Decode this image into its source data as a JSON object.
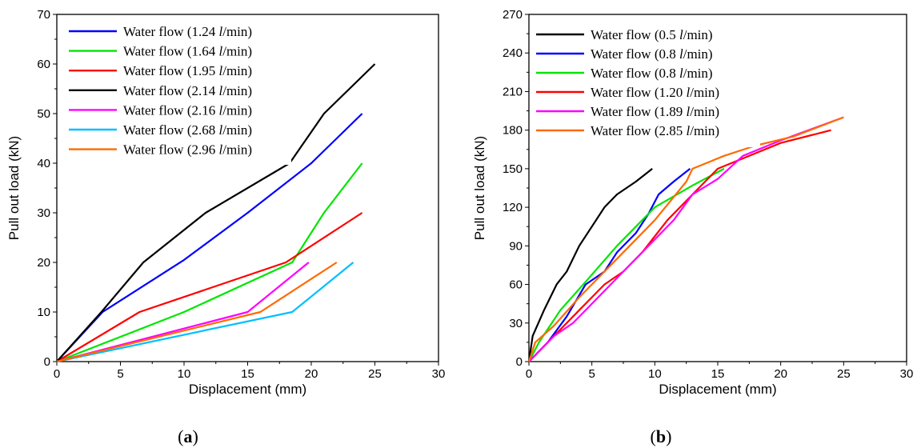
{
  "figure": {
    "captions": [
      {
        "open": "(",
        "letter": "a",
        "close": ")"
      },
      {
        "open": "(",
        "letter": "b",
        "close": ")"
      }
    ]
  },
  "chart_data": [
    {
      "type": "line",
      "xlabel": "Displacement (mm)",
      "ylabel": "Pull out load (kN)",
      "xlim": [
        0,
        30
      ],
      "ylim": [
        0,
        70
      ],
      "xticks": [
        0,
        5,
        10,
        15,
        20,
        25,
        30
      ],
      "yticks": [
        0,
        10,
        20,
        30,
        40,
        50,
        60,
        70
      ],
      "legend_position": "top-left",
      "grid": false,
      "series": [
        {
          "name": "Water flow (1.24 l/min)",
          "legend_prefix": "Water flow (1.24 ",
          "legend_unit": "l",
          "legend_suffix": "/min)",
          "color": "#0000ff",
          "x": [
            0,
            3.6,
            10,
            15,
            20,
            24
          ],
          "y": [
            0,
            10,
            20.5,
            30,
            40,
            50
          ]
        },
        {
          "name": "Water flow (1.64 l/min)",
          "legend_prefix": "Water flow (1.64 ",
          "legend_unit": "l",
          "legend_suffix": "/min)",
          "color": "#00e600",
          "x": [
            0,
            10,
            18.5,
            21,
            24
          ],
          "y": [
            0,
            10,
            20,
            30,
            40
          ]
        },
        {
          "name": "Water flow (1.95 l/min)",
          "legend_prefix": "Water flow (1.95 ",
          "legend_unit": "l",
          "legend_suffix": "/min)",
          "color": "#ff0000",
          "x": [
            0,
            6.5,
            18,
            24
          ],
          "y": [
            0,
            10,
            20,
            30
          ]
        },
        {
          "name": "Water flow (2.14 l/min)",
          "legend_prefix": "Water flow (2.14 ",
          "legend_unit": "l",
          "legend_suffix": "/min)",
          "color": "#000000",
          "x": [
            0,
            3.5,
            6.8,
            11.7,
            18.3,
            21,
            25
          ],
          "y": [
            0,
            10,
            20,
            30,
            40,
            50,
            60
          ]
        },
        {
          "name": "Water flow (2.16 l/min)",
          "legend_prefix": "Water flow (2.16 ",
          "legend_unit": "l",
          "legend_suffix": "/min)",
          "color": "#ff00ff",
          "x": [
            0,
            15,
            19.8
          ],
          "y": [
            0,
            10,
            20
          ]
        },
        {
          "name": "Water flow (2.68 l/min)",
          "legend_prefix": "Water flow (2.68 ",
          "legend_unit": "l",
          "legend_suffix": "/min)",
          "color": "#00bfff",
          "x": [
            0,
            18.5,
            23.3
          ],
          "y": [
            0,
            10,
            20
          ]
        },
        {
          "name": "Water flow (2.96 l/min)",
          "legend_prefix": "Water flow (2.96 ",
          "legend_unit": "l",
          "legend_suffix": "/min)",
          "color": "#ff6a00",
          "x": [
            0,
            16,
            22
          ],
          "y": [
            0,
            10,
            20
          ]
        }
      ]
    },
    {
      "type": "line",
      "xlabel": "Displacement (mm)",
      "ylabel": "Pull out load (kN)",
      "xlim": [
        0,
        30
      ],
      "ylim": [
        0,
        270
      ],
      "xticks": [
        0,
        5,
        10,
        15,
        20,
        25,
        30
      ],
      "yticks": [
        0,
        30,
        60,
        90,
        120,
        150,
        180,
        210,
        240,
        270
      ],
      "legend_position": "top-left",
      "grid": false,
      "series": [
        {
          "name": "Water flow (0.5 l/min)",
          "legend_prefix": "Water flow (0.5 ",
          "legend_unit": "l",
          "legend_suffix": "/min)",
          "color": "#000000",
          "x": [
            0,
            0.3,
            1.2,
            2.2,
            3,
            4,
            5,
            6,
            7,
            8.5,
            9.8
          ],
          "y": [
            0,
            20,
            40,
            60,
            70,
            90,
            105,
            120,
            130,
            140,
            150
          ]
        },
        {
          "name": "Water flow (0.8 l/min)",
          "legend_prefix": "Water flow (0.8 ",
          "legend_unit": "l",
          "legend_suffix": "/min)",
          "color": "#0000ff",
          "x": [
            0,
            1.5,
            3,
            4.5,
            6,
            7,
            8.5,
            9.5,
            10.3,
            11.5,
            12.8
          ],
          "y": [
            0,
            15,
            35,
            60,
            70,
            85,
            100,
            115,
            130,
            140,
            150
          ]
        },
        {
          "name": "Water flow (0.8 l/min)",
          "legend_prefix": "Water flow (0.8 ",
          "legend_unit": "l",
          "legend_suffix": "/min)",
          "color": "#00e600",
          "x": [
            0,
            0.8,
            2.5,
            4.5,
            7,
            10,
            13,
            15.5
          ],
          "y": [
            0,
            15,
            40,
            62,
            90,
            120,
            137,
            150
          ]
        },
        {
          "name": "Water flow (1.20 l/min)",
          "legend_prefix": "Water flow (1.20 ",
          "legend_unit": "l",
          "legend_suffix": "/min)",
          "color": "#ff0000",
          "x": [
            0,
            2,
            4,
            5,
            6,
            7.5,
            9,
            11,
            13,
            15,
            20,
            24
          ],
          "y": [
            0,
            20,
            40,
            50,
            60,
            70,
            85,
            110,
            130,
            150,
            170,
            180
          ]
        },
        {
          "name": "Water flow (1.89 l/min)",
          "legend_prefix": "Water flow (1.89 ",
          "legend_unit": "l",
          "legend_suffix": "/min)",
          "color": "#ff00ff",
          "x": [
            0,
            2,
            3.5,
            5,
            7,
            9,
            11.5,
            13,
            15,
            17,
            20,
            25
          ],
          "y": [
            0,
            20,
            30,
            45,
            65,
            85,
            110,
            130,
            142,
            160,
            172,
            190
          ]
        },
        {
          "name": "Water flow (2.85 l/min)",
          "legend_prefix": "Water flow (2.85 ",
          "legend_unit": "l",
          "legend_suffix": "/min)",
          "color": "#ff6a00",
          "x": [
            0,
            0.5,
            2,
            4,
            6,
            8,
            10,
            12.5,
            13,
            15.5,
            18,
            21,
            25
          ],
          "y": [
            0,
            15,
            28,
            50,
            70,
            90,
            110,
            140,
            150,
            160,
            168,
            175,
            190
          ]
        }
      ]
    }
  ]
}
